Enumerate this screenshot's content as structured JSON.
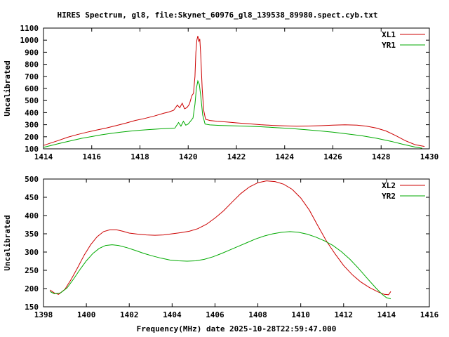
{
  "title": "HIRES Spectrum, gl8, file:Skynet_60976_gl8_139538_89980.spect.cyb.txt",
  "xlabel": "Frequency(MHz) date 2025-10-28T22:59:47.000",
  "colors": {
    "series_red": "#cc0000",
    "series_green": "#00aa00",
    "axis": "#000000",
    "background": "#ffffff"
  },
  "chart_data": [
    {
      "type": "line",
      "title": "",
      "ylabel": "Uncalibrated",
      "xlim": [
        1414,
        1430
      ],
      "xtick_step": 2,
      "ylim": [
        100,
        1100
      ],
      "ytick_step": 100,
      "grid": false,
      "legend_position": "top-right",
      "series": [
        {
          "name": "XL1",
          "color": "#cc0000",
          "points": [
            [
              1414.0,
              128
            ],
            [
              1414.3,
              148
            ],
            [
              1414.6,
              168
            ],
            [
              1415.0,
              196
            ],
            [
              1415.4,
              218
            ],
            [
              1415.8,
              238
            ],
            [
              1416.2,
              255
            ],
            [
              1416.6,
              272
            ],
            [
              1417.0,
              292
            ],
            [
              1417.4,
              312
            ],
            [
              1417.8,
              335
            ],
            [
              1418.2,
              352
            ],
            [
              1418.6,
              372
            ],
            [
              1419.0,
              396
            ],
            [
              1419.2,
              405
            ],
            [
              1419.4,
              420
            ],
            [
              1419.55,
              462
            ],
            [
              1419.65,
              440
            ],
            [
              1419.75,
              478
            ],
            [
              1419.85,
              432
            ],
            [
              1419.95,
              442
            ],
            [
              1420.05,
              470
            ],
            [
              1420.15,
              540
            ],
            [
              1420.22,
              560
            ],
            [
              1420.28,
              700
            ],
            [
              1420.32,
              900
            ],
            [
              1420.36,
              1000
            ],
            [
              1420.4,
              1035
            ],
            [
              1420.44,
              990
            ],
            [
              1420.48,
              1010
            ],
            [
              1420.52,
              880
            ],
            [
              1420.58,
              600
            ],
            [
              1420.64,
              420
            ],
            [
              1420.72,
              345
            ],
            [
              1420.9,
              335
            ],
            [
              1421.2,
              328
            ],
            [
              1421.6,
              322
            ],
            [
              1422.0,
              315
            ],
            [
              1422.5,
              308
            ],
            [
              1423.0,
              300
            ],
            [
              1423.5,
              294
            ],
            [
              1424.0,
              290
            ],
            [
              1424.5,
              288
            ],
            [
              1425.0,
              289
            ],
            [
              1425.5,
              292
            ],
            [
              1426.0,
              296
            ],
            [
              1426.5,
              299
            ],
            [
              1427.0,
              296
            ],
            [
              1427.4,
              288
            ],
            [
              1427.8,
              272
            ],
            [
              1428.2,
              248
            ],
            [
              1428.6,
              210
            ],
            [
              1429.0,
              168
            ],
            [
              1429.4,
              135
            ],
            [
              1429.8,
              120
            ]
          ]
        },
        {
          "name": "YR1",
          "color": "#00aa00",
          "points": [
            [
              1414.0,
              112
            ],
            [
              1414.4,
              132
            ],
            [
              1414.8,
              152
            ],
            [
              1415.2,
              170
            ],
            [
              1415.6,
              188
            ],
            [
              1416.0,
              202
            ],
            [
              1416.4,
              216
            ],
            [
              1416.8,
              228
            ],
            [
              1417.2,
              238
            ],
            [
              1417.6,
              247
            ],
            [
              1418.0,
              254
            ],
            [
              1418.4,
              260
            ],
            [
              1418.8,
              265
            ],
            [
              1419.2,
              269
            ],
            [
              1419.45,
              272
            ],
            [
              1419.6,
              318
            ],
            [
              1419.7,
              288
            ],
            [
              1419.8,
              328
            ],
            [
              1419.9,
              296
            ],
            [
              1420.0,
              306
            ],
            [
              1420.1,
              330
            ],
            [
              1420.2,
              355
            ],
            [
              1420.28,
              470
            ],
            [
              1420.34,
              600
            ],
            [
              1420.4,
              662
            ],
            [
              1420.46,
              635
            ],
            [
              1420.52,
              540
            ],
            [
              1420.6,
              380
            ],
            [
              1420.7,
              305
            ],
            [
              1420.9,
              298
            ],
            [
              1421.3,
              294
            ],
            [
              1421.8,
              291
            ],
            [
              1422.4,
              288
            ],
            [
              1423.0,
              283
            ],
            [
              1423.6,
              276
            ],
            [
              1424.2,
              269
            ],
            [
              1424.8,
              260
            ],
            [
              1425.4,
              250
            ],
            [
              1426.0,
              238
            ],
            [
              1426.6,
              224
            ],
            [
              1427.2,
              208
            ],
            [
              1427.8,
              188
            ],
            [
              1428.4,
              163
            ],
            [
              1428.9,
              138
            ],
            [
              1429.4,
              115
            ],
            [
              1429.7,
              105
            ]
          ]
        }
      ]
    },
    {
      "type": "line",
      "title": "",
      "ylabel": "Uncalibrated",
      "xlim": [
        1398,
        1416
      ],
      "xtick_step": 2,
      "ylim": [
        150,
        500
      ],
      "ytick_step": 50,
      "grid": false,
      "legend_position": "top-right",
      "series": [
        {
          "name": "XL2",
          "color": "#cc0000",
          "points": [
            [
              1398.3,
              196
            ],
            [
              1398.5,
              188
            ],
            [
              1398.7,
              184
            ],
            [
              1399.0,
              198
            ],
            [
              1399.3,
              226
            ],
            [
              1399.6,
              258
            ],
            [
              1399.9,
              292
            ],
            [
              1400.2,
              320
            ],
            [
              1400.5,
              342
            ],
            [
              1400.8,
              356
            ],
            [
              1401.1,
              361
            ],
            [
              1401.4,
              361
            ],
            [
              1401.7,
              357
            ],
            [
              1402.0,
              352
            ],
            [
              1402.4,
              349
            ],
            [
              1402.8,
              347
            ],
            [
              1403.2,
              346
            ],
            [
              1403.6,
              347
            ],
            [
              1404.0,
              350
            ],
            [
              1404.4,
              353
            ],
            [
              1404.8,
              357
            ],
            [
              1405.2,
              364
            ],
            [
              1405.6,
              376
            ],
            [
              1406.0,
              393
            ],
            [
              1406.4,
              413
            ],
            [
              1406.8,
              437
            ],
            [
              1407.2,
              460
            ],
            [
              1407.6,
              478
            ],
            [
              1408.0,
              490
            ],
            [
              1408.4,
              495
            ],
            [
              1408.8,
              493
            ],
            [
              1409.2,
              486
            ],
            [
              1409.6,
              472
            ],
            [
              1410.0,
              448
            ],
            [
              1410.4,
              415
            ],
            [
              1410.8,
              372
            ],
            [
              1411.2,
              330
            ],
            [
              1411.6,
              295
            ],
            [
              1412.0,
              263
            ],
            [
              1412.4,
              238
            ],
            [
              1412.8,
              218
            ],
            [
              1413.2,
              203
            ],
            [
              1413.6,
              191
            ],
            [
              1413.9,
              184
            ],
            [
              1414.1,
              183
            ],
            [
              1414.2,
              192
            ]
          ]
        },
        {
          "name": "YR2",
          "color": "#00aa00",
          "points": [
            [
              1398.3,
              192
            ],
            [
              1398.5,
              186
            ],
            [
              1398.8,
              188
            ],
            [
              1399.1,
              202
            ],
            [
              1399.4,
              226
            ],
            [
              1399.7,
              252
            ],
            [
              1400.0,
              276
            ],
            [
              1400.3,
              296
            ],
            [
              1400.6,
              310
            ],
            [
              1400.9,
              318
            ],
            [
              1401.2,
              320
            ],
            [
              1401.5,
              318
            ],
            [
              1401.9,
              312
            ],
            [
              1402.3,
              304
            ],
            [
              1402.7,
              296
            ],
            [
              1403.1,
              289
            ],
            [
              1403.5,
              283
            ],
            [
              1403.9,
              278
            ],
            [
              1404.3,
              276
            ],
            [
              1404.7,
              275
            ],
            [
              1405.1,
              276
            ],
            [
              1405.5,
              280
            ],
            [
              1405.9,
              287
            ],
            [
              1406.3,
              296
            ],
            [
              1406.7,
              306
            ],
            [
              1407.1,
              316
            ],
            [
              1407.5,
              326
            ],
            [
              1407.9,
              336
            ],
            [
              1408.3,
              344
            ],
            [
              1408.7,
              350
            ],
            [
              1409.1,
              354
            ],
            [
              1409.5,
              356
            ],
            [
              1409.9,
              354
            ],
            [
              1410.3,
              349
            ],
            [
              1410.7,
              341
            ],
            [
              1411.1,
              331
            ],
            [
              1411.5,
              318
            ],
            [
              1411.9,
              301
            ],
            [
              1412.3,
              280
            ],
            [
              1412.7,
              255
            ],
            [
              1413.1,
              228
            ],
            [
              1413.5,
              202
            ],
            [
              1413.8,
              184
            ],
            [
              1414.0,
              175
            ],
            [
              1414.2,
              172
            ]
          ]
        }
      ]
    }
  ]
}
